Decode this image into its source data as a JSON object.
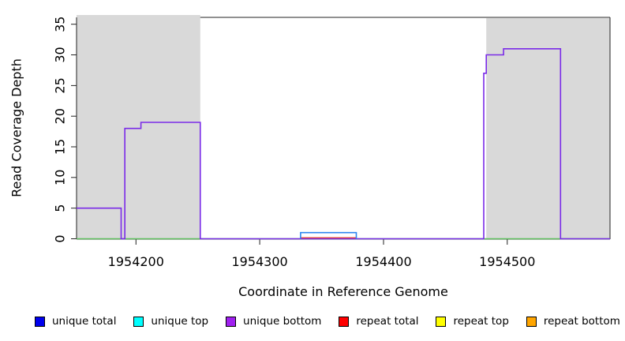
{
  "chart_data": {
    "type": "line",
    "subtype": "step-coverage",
    "title": "",
    "xlabel": "Coordinate in Reference Genome",
    "ylabel": "Read Coverage Depth",
    "xlim": [
      1954152,
      1954583
    ],
    "ylim": [
      0,
      35
    ],
    "x_ticks": [
      1954200,
      1954300,
      1954400,
      1954500
    ],
    "y_ticks": [
      0,
      5,
      10,
      15,
      20,
      25,
      30,
      35
    ],
    "grid": false,
    "background": "#ffffff",
    "shaded_region_color": "#d9d9d9",
    "shaded_regions": [
      {
        "x_from": 1954152,
        "x_to": 1954252
      },
      {
        "x_from": 1954483,
        "x_to": 1954583
      }
    ],
    "series": [
      {
        "name": "green-baseline",
        "color": "#5fbf5f",
        "width": 1.4,
        "points": [
          [
            1954152,
            0
          ],
          [
            1954583,
            0
          ]
        ]
      },
      {
        "name": "unique-bottom-coverage-step",
        "color": "#7a2be8",
        "width": 1.6,
        "points": [
          [
            1954152,
            5
          ],
          [
            1954188,
            5
          ],
          [
            1954188,
            0
          ],
          [
            1954191,
            0
          ],
          [
            1954191,
            18
          ],
          [
            1954204,
            18
          ],
          [
            1954204,
            19
          ],
          [
            1954252,
            19
          ],
          [
            1954252,
            0
          ],
          [
            1954481,
            0
          ],
          [
            1954481,
            27
          ],
          [
            1954483,
            27
          ],
          [
            1954483,
            30
          ],
          [
            1954497,
            30
          ],
          [
            1954497,
            31
          ],
          [
            1954543,
            31
          ],
          [
            1954543,
            0
          ],
          [
            1954583,
            0
          ]
        ]
      },
      {
        "name": "red-baseline-segment",
        "color": "#e04040",
        "width": 1.3,
        "points": [
          [
            1954333,
            0
          ],
          [
            1954378,
            0
          ]
        ]
      },
      {
        "name": "blue-coverage-segment",
        "color": "#2e86f0",
        "width": 1.6,
        "points": [
          [
            1954333,
            0
          ],
          [
            1954333,
            1
          ],
          [
            1954378,
            1
          ],
          [
            1954378,
            0
          ]
        ]
      }
    ],
    "legend_position": "bottom",
    "legend": [
      {
        "label": "unique total",
        "color": "#0000ee"
      },
      {
        "label": "unique top",
        "color": "#00ffff"
      },
      {
        "label": "unique bottom",
        "color": "#a020f0"
      },
      {
        "label": "repeat total",
        "color": "#ff0000"
      },
      {
        "label": "repeat top",
        "color": "#ffff00"
      },
      {
        "label": "repeat bottom",
        "color": "#ffa500"
      }
    ]
  }
}
